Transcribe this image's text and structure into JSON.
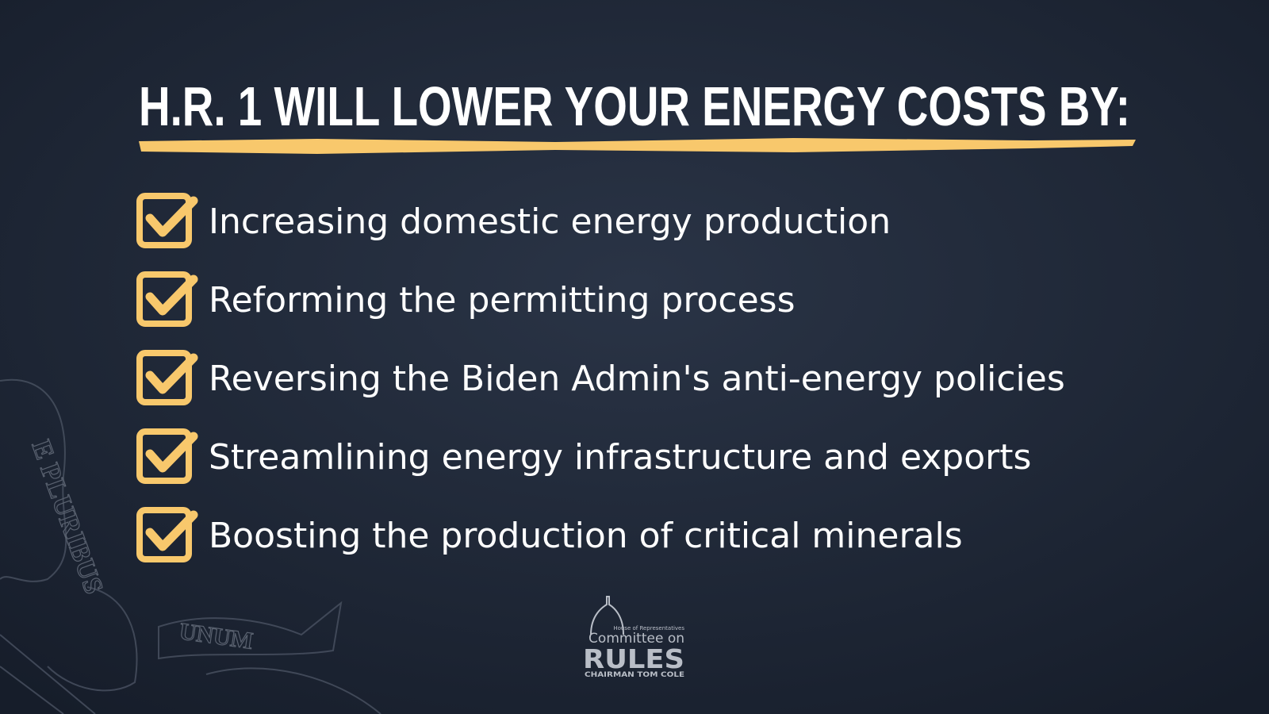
{
  "header": {
    "title": "H.R. 1 WILL LOWER YOUR ENERGY COSTS BY:"
  },
  "items": [
    "Increasing domestic energy production",
    "Reforming the permitting process",
    "Reversing the Biden Admin's anti-energy policies",
    "Streamlining energy infrastructure and exports",
    "Boosting the production of critical minerals"
  ],
  "seal": {
    "motto_1": "E PLURIBUS",
    "motto_2": "UNUM"
  },
  "logo": {
    "line_1": "House of Representatives",
    "line_2": "Committee on",
    "line_3": "RULES",
    "line_4": "CHAIRMAN TOM COLE"
  }
}
